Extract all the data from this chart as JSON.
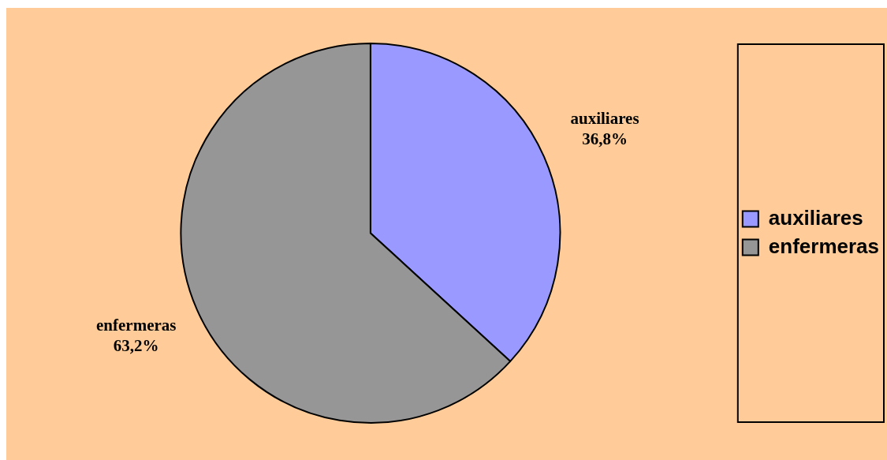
{
  "chart_data": {
    "type": "pie",
    "categories": [
      "auxiliares",
      "enfermeras"
    ],
    "values": [
      36.8,
      63.2
    ],
    "colors": [
      "#9999ff",
      "#969696"
    ],
    "value_labels": [
      "36,8%",
      "63,2%"
    ],
    "legend": "right"
  }
}
